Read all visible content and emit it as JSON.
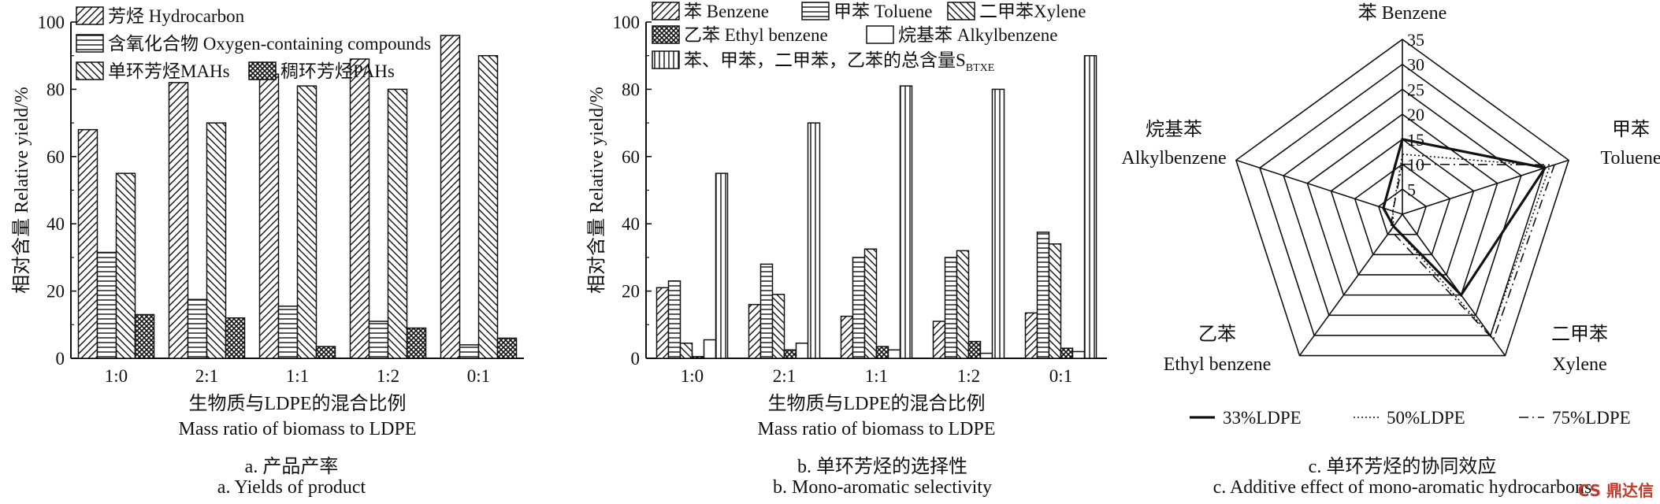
{
  "chart_data": [
    {
      "type": "bar",
      "ylabel": "相对含量 Relative yield/%",
      "xlabel_cn": "生物质与LDPE的混合比例",
      "xlabel_en": "Mass ratio of biomass to LDPE",
      "caption_cn": "a.  产品产率",
      "caption_en": "a. Yields of product",
      "ylim": [
        0,
        100
      ],
      "yticks": [
        0,
        20,
        40,
        60,
        80,
        100
      ],
      "categories": [
        "1:0",
        "2:1",
        "1:1",
        "1:2",
        "0:1"
      ],
      "legend_position": "top-left",
      "series": [
        {
          "name": "芳烃 Hydrocarbon",
          "pattern": "diag-right",
          "values": [
            68,
            82,
            84.5,
            89,
            96
          ]
        },
        {
          "name": "含氧化合物 Oxygen-containing compounds",
          "pattern": "horizontal",
          "values": [
            31.5,
            17.5,
            15.5,
            11,
            4
          ]
        },
        {
          "name": "单环芳烃MAHs",
          "pattern": "diag-left",
          "values": [
            55,
            70,
            81,
            80,
            90
          ]
        },
        {
          "name": "稠环芳烃PAHs",
          "pattern": "crosshatch",
          "values": [
            13,
            12,
            3.5,
            9,
            6
          ]
        }
      ]
    },
    {
      "type": "bar",
      "ylabel": "相对含量 Relative yield/%",
      "xlabel_cn": "生物质与LDPE的混合比例",
      "xlabel_en": "Mass ratio of biomass to LDPE",
      "caption_cn": "b.  单环芳烃的选择性",
      "caption_en": "b. Mono-aromatic selectivity",
      "ylim": [
        0,
        100
      ],
      "yticks": [
        0,
        20,
        40,
        60,
        80,
        100
      ],
      "categories": [
        "1:0",
        "2:1",
        "1:1",
        "1:2",
        "0:1"
      ],
      "legend_position": "top",
      "series": [
        {
          "name": "苯 Benzene",
          "pattern": "diag-right",
          "values": [
            21,
            16,
            12.5,
            11,
            13.5
          ]
        },
        {
          "name": "甲苯 Toluene",
          "pattern": "horizontal",
          "values": [
            23,
            28,
            30,
            30,
            37.5
          ]
        },
        {
          "name": "二甲苯Xylene",
          "pattern": "diag-left",
          "values": [
            4.5,
            19,
            32.5,
            32,
            34
          ]
        },
        {
          "name": "乙苯 Ethyl benzene",
          "pattern": "crosshatch",
          "values": [
            0.5,
            2.5,
            3.5,
            5,
            3
          ]
        },
        {
          "name": "烷基苯 Alkylbenzene",
          "pattern": "empty",
          "values": [
            5.5,
            4.5,
            2.5,
            1.5,
            2
          ]
        },
        {
          "name": "苯、甲苯，二甲苯，乙苯的总含量S",
          "subscript": "BTXE",
          "pattern": "vertical",
          "values": [
            55,
            70,
            81,
            80,
            90
          ]
        }
      ]
    },
    {
      "type": "radar",
      "axes": [
        "苯 Benzene",
        "甲苯 Toluene",
        "二甲苯 Xylene",
        "乙苯 Ethyl benzene",
        "烷基苯 Alkylbenzene"
      ],
      "axis_labels": [
        {
          "cn": "苯 Benzene",
          "en": ""
        },
        {
          "cn": "甲苯",
          "en": "Toluene"
        },
        {
          "cn": "二甲苯",
          "en": "Xylene"
        },
        {
          "cn": "乙苯",
          "en": "Ethyl benzene"
        },
        {
          "cn": "烷基苯",
          "en": "Alkylbenzene"
        }
      ],
      "rlim": [
        0,
        35
      ],
      "rticks": [
        0,
        5,
        10,
        15,
        20,
        25,
        30,
        35
      ],
      "caption_cn": "c. 单环芳烃的协同效应",
      "caption_en": "c. Additive effect of mono-aromatic hydrocarbons",
      "legend_position": "bottom",
      "series": [
        {
          "name": "33%LDPE",
          "dash": "solid",
          "values": [
            15,
            30,
            20,
            3,
            4
          ]
        },
        {
          "name": "50%LDPE",
          "dash": "dotted",
          "values": [
            12,
            31,
            30,
            3,
            2
          ]
        },
        {
          "name": "75%LDPE",
          "dash": "dashdot",
          "values": [
            10,
            32,
            31,
            4,
            2
          ]
        }
      ]
    }
  ],
  "watermark": "CS 鼎达信"
}
